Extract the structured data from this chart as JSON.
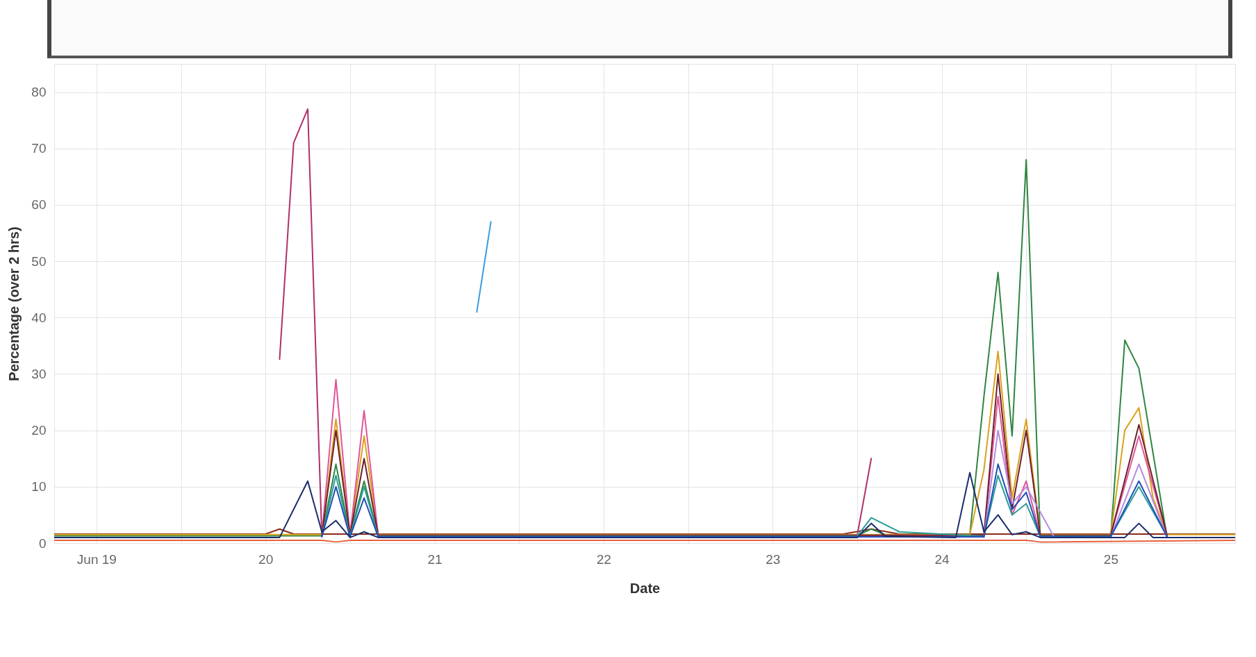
{
  "chart_data": {
    "type": "line",
    "xlabel": "Date",
    "ylabel": "Percentage (over 2 hrs)",
    "xlim": [
      "--06-18T18:00",
      "--06-25T17:40"
    ],
    "xticks": [
      {
        "value": "--06-19",
        "label": "Jun 19"
      },
      {
        "value": "--06-19T12:00",
        "label": null
      },
      {
        "value": "--06-20",
        "label": "20"
      },
      {
        "value": "--06-20T12:00",
        "label": null
      },
      {
        "value": "--06-21",
        "label": "21"
      },
      {
        "value": "--06-21T12:00",
        "label": null
      },
      {
        "value": "--06-22",
        "label": "22"
      },
      {
        "value": "--06-22T12:00",
        "label": null
      },
      {
        "value": "--06-23",
        "label": "23"
      },
      {
        "value": "--06-23T12:00",
        "label": null
      },
      {
        "value": "--06-24",
        "label": "24"
      },
      {
        "value": "--06-24T12:00",
        "label": null
      },
      {
        "value": "--06-25",
        "label": "25"
      },
      {
        "value": "--06-25T12:00",
        "label": null
      }
    ],
    "ylim": [
      0,
      85
    ],
    "yticks": [
      0,
      10,
      20,
      30,
      40,
      50,
      60,
      70,
      80
    ],
    "grid": true,
    "legend": false,
    "marker": "none",
    "line_style": "solid",
    "series": [
      {
        "color": "#e8603c",
        "x": [
          "--06-18T18:00",
          "--06-20T08:00",
          "--06-20T10:00",
          "--06-20T12:00",
          "--06-24T12:00",
          "--06-24T14:00",
          "--06-25T17:40"
        ],
        "values": [
          0.5,
          0.5,
          0.2,
          0.5,
          0.5,
          0.2,
          0.5
        ]
      },
      {
        "color": "#8b2a1a",
        "x": [
          "--06-18T18:00",
          "--06-20T00:00",
          "--06-20T02:00",
          "--06-20T04:00",
          "--06-23T10:00",
          "--06-23T14:00",
          "--06-23T18:00",
          "--06-25T17:40"
        ],
        "values": [
          1.6,
          1.6,
          2.5,
          1.6,
          1.6,
          2.5,
          1.6,
          1.6
        ]
      },
      {
        "color": "#b0306a",
        "x": [
          "--06-20T02:00",
          "--06-20T04:00",
          "--06-20T06:00",
          "--06-20T08:00",
          "--06-22T00:00",
          "--06-23T12:00",
          "--06-23T14:00"
        ],
        "values": [
          32.6,
          71,
          77,
          1.2,
          null,
          1.3,
          15
        ]
      },
      {
        "color": "#3a9be0",
        "x": [
          "--06-21T06:00",
          "--06-21T08:00"
        ],
        "values": [
          41,
          57
        ]
      },
      {
        "color": "#2e8540",
        "x": [
          "--06-18T18:00",
          "--06-20T08:00",
          "--06-20T10:00",
          "--06-20T12:00",
          "--06-20T14:00",
          "--06-20T16:00",
          "--06-23T12:00",
          "--06-23T14:00",
          "--06-23T16:00",
          "--06-24T04:00",
          "--06-24T06:00",
          "--06-24T08:00",
          "--06-24T10:00",
          "--06-24T12:00",
          "--06-24T14:00",
          "--06-25T00:00",
          "--06-25T02:00",
          "--06-25T04:00",
          "--06-25T08:00",
          "--06-25T17:40"
        ],
        "values": [
          1.3,
          1.3,
          14,
          1.3,
          11,
          1.3,
          1.3,
          2.5,
          1.5,
          1.5,
          26,
          48,
          19,
          68,
          1,
          1,
          36,
          31,
          1,
          1
        ]
      },
      {
        "color": "#d9a21b",
        "x": [
          "--06-18T18:00",
          "--06-20T08:00",
          "--06-20T10:00",
          "--06-20T12:00",
          "--06-20T14:00",
          "--06-20T16:00",
          "--06-24T04:00",
          "--06-24T06:00",
          "--06-24T08:00",
          "--06-24T10:00",
          "--06-24T12:00",
          "--06-24T14:00",
          "--06-25T00:00",
          "--06-25T02:00",
          "--06-25T04:00",
          "--06-25T06:00",
          "--06-25T08:00",
          "--06-25T17:40"
        ],
        "values": [
          1.5,
          1.5,
          22,
          1.5,
          19,
          1.5,
          1.5,
          13,
          34,
          8,
          22,
          1.5,
          1.5,
          20,
          24,
          8,
          1.5,
          1.5
        ]
      },
      {
        "color": "#e0559a",
        "x": [
          "--06-20T08:00",
          "--06-20T10:00",
          "--06-20T12:00",
          "--06-20T14:00",
          "--06-20T16:00",
          "--06-24T06:00",
          "--06-24T08:00",
          "--06-24T10:00",
          "--06-24T12:00",
          "--06-24T14:00",
          "--06-25T00:00",
          "--06-25T04:00",
          "--06-25T08:00"
        ],
        "values": [
          1.4,
          29,
          1.4,
          23.5,
          1.4,
          1.4,
          26,
          5,
          11,
          1.4,
          1.4,
          19,
          1.4
        ]
      },
      {
        "color": "#6e1f2e",
        "x": [
          "--06-20T08:00",
          "--06-20T10:00",
          "--06-20T12:00",
          "--06-20T14:00",
          "--06-20T16:00",
          "--06-24T06:00",
          "--06-24T08:00",
          "--06-24T10:00",
          "--06-24T12:00",
          "--06-24T14:00",
          "--06-25T00:00",
          "--06-25T04:00",
          "--06-25T08:00"
        ],
        "values": [
          1.4,
          20,
          1.4,
          15,
          1.4,
          1.4,
          30,
          6,
          20,
          1.4,
          1.4,
          21,
          1.4
        ]
      },
      {
        "color": "#2a9d9a",
        "x": [
          "--06-20T08:00",
          "--06-20T10:00",
          "--06-20T12:00",
          "--06-20T14:00",
          "--06-20T16:00",
          "--06-23T12:00",
          "--06-23T14:00",
          "--06-23T18:00",
          "--06-24T06:00",
          "--06-24T08:00",
          "--06-24T10:00",
          "--06-24T12:00",
          "--06-24T14:00",
          "--06-25T00:00",
          "--06-25T04:00",
          "--06-25T08:00"
        ],
        "values": [
          1.2,
          12,
          1.2,
          10,
          1.2,
          1.2,
          4.5,
          2,
          1.2,
          12,
          5,
          7,
          1.2,
          1.2,
          10,
          1.2
        ]
      },
      {
        "color": "#b48be0",
        "x": [
          "--06-24T06:00",
          "--06-24T08:00",
          "--06-24T10:00",
          "--06-24T12:00",
          "--06-24T16:00",
          "--06-25T00:00",
          "--06-25T04:00",
          "--06-25T08:00"
        ],
        "values": [
          1,
          20,
          7,
          10,
          1,
          1,
          14,
          1
        ]
      },
      {
        "color": "#1f4fb5",
        "x": [
          "--06-20T08:00",
          "--06-20T10:00",
          "--06-20T12:00",
          "--06-20T14:00",
          "--06-20T16:00",
          "--06-24T06:00",
          "--06-24T08:00",
          "--06-24T10:00",
          "--06-24T12:00",
          "--06-24T14:00",
          "--06-25T00:00",
          "--06-25T04:00",
          "--06-25T08:00"
        ],
        "values": [
          1.1,
          10,
          1.1,
          8,
          1.1,
          1.1,
          14,
          6,
          9,
          1.1,
          1.1,
          11,
          1.1
        ]
      },
      {
        "color": "#1b2d6b",
        "x": [
          "--06-18T18:00",
          "--06-20T02:00",
          "--06-20T06:00",
          "--06-20T08:00",
          "--06-20T10:00",
          "--06-20T12:00",
          "--06-20T14:00",
          "--06-20T16:00",
          "--06-23T12:00",
          "--06-23T14:00",
          "--06-23T16:00",
          "--06-24T02:00",
          "--06-24T04:00",
          "--06-24T06:00",
          "--06-24T08:00",
          "--06-24T10:00",
          "--06-24T12:00",
          "--06-24T14:00",
          "--06-25T02:00",
          "--06-25T04:00",
          "--06-25T06:00",
          "--06-25T17:40"
        ],
        "values": [
          1,
          1,
          11,
          2,
          4,
          1,
          2,
          1,
          1,
          3.5,
          1.2,
          1,
          12.5,
          2,
          5,
          1.5,
          2,
          1,
          1,
          3.5,
          1,
          1
        ]
      }
    ]
  }
}
